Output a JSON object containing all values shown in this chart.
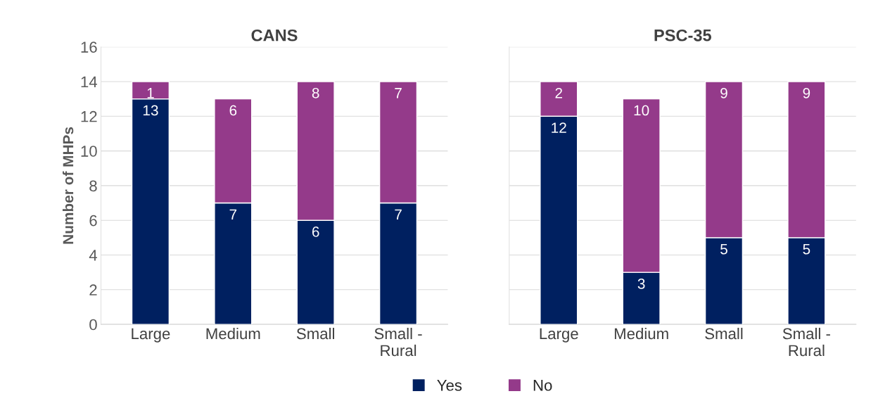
{
  "chart_data": [
    {
      "type": "bar",
      "title": "CANS",
      "ylabel": "Number of MHPs",
      "categories": [
        "Large",
        "Medium",
        "Small",
        "Small - Rural"
      ],
      "stacked": true,
      "series": [
        {
          "name": "Yes",
          "color": "#002060",
          "values": [
            13,
            7,
            6,
            7
          ]
        },
        {
          "name": "No",
          "color": "#943a8a",
          "values": [
            1,
            6,
            8,
            7
          ]
        }
      ],
      "ylim": [
        0,
        16
      ],
      "yticks": [
        0,
        2,
        4,
        6,
        8,
        10,
        12,
        14,
        16
      ],
      "grid": "y",
      "data_labels": true,
      "legend": "bottom"
    },
    {
      "type": "bar",
      "title": "PSC-35",
      "categories": [
        "Large",
        "Medium",
        "Small",
        "Small - Rural"
      ],
      "stacked": true,
      "series": [
        {
          "color": "#002060",
          "values": [
            12,
            3,
            5,
            5
          ]
        },
        {
          "color": "#943a8a",
          "values": [
            2,
            10,
            9,
            9
          ]
        }
      ],
      "ylim": [
        0,
        16
      ],
      "yticks": [
        0,
        2,
        4,
        6,
        8,
        10,
        12,
        14,
        16
      ],
      "grid": "y",
      "data_labels": true,
      "tick_labels": "x"
    }
  ]
}
